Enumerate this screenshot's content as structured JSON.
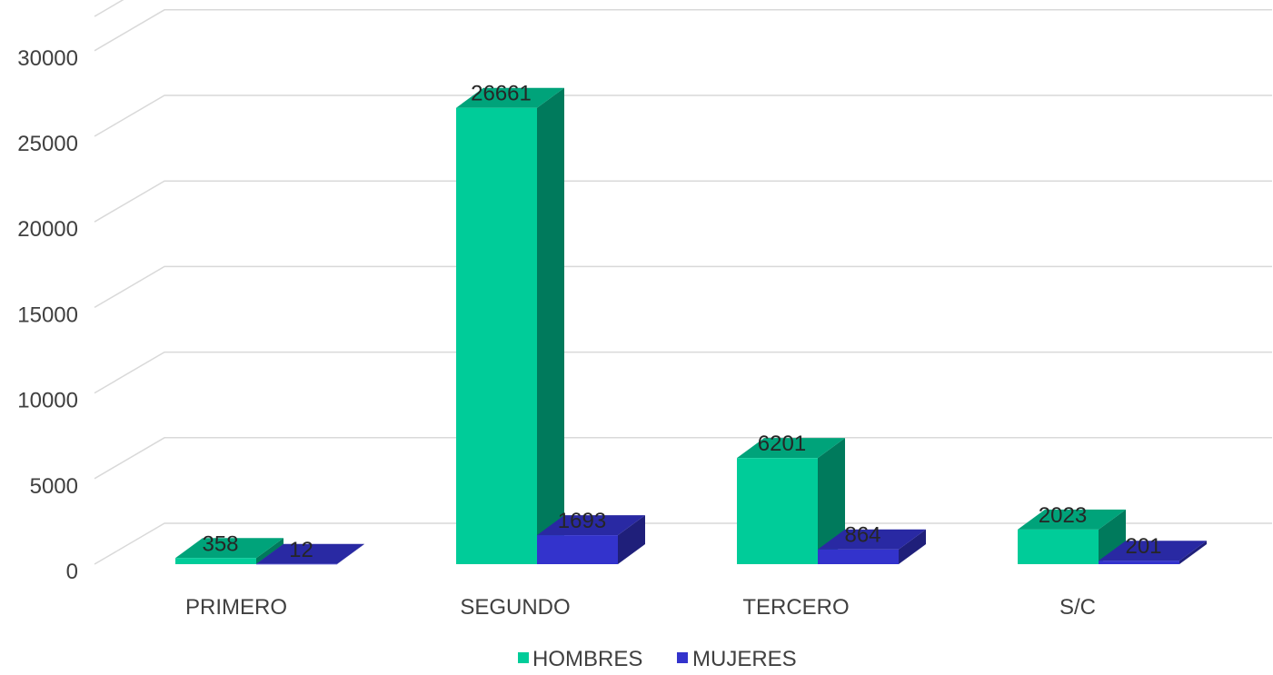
{
  "chart_data": {
    "type": "bar",
    "title": "",
    "xlabel": "",
    "ylabel": "",
    "categories": [
      "PRIMERO",
      "SEGUNDO",
      "TERCERO",
      "S/C"
    ],
    "series": [
      {
        "name": "HOMBRES",
        "values": [
          358,
          26661,
          6201,
          2023
        ],
        "color": "#00CC99",
        "side_color": "#007A5C",
        "top_color": "#00A37A"
      },
      {
        "name": "MUJERES",
        "values": [
          12,
          1693,
          864,
          201
        ],
        "color": "#3333CC",
        "side_color": "#1F1F7A",
        "top_color": "#2929A3"
      }
    ],
    "yticks": [
      0,
      5000,
      10000,
      15000,
      20000,
      25000,
      30000
    ],
    "ylim": [
      0,
      32000
    ],
    "grid": true,
    "legend_position": "bottom",
    "style": "3d-column"
  }
}
